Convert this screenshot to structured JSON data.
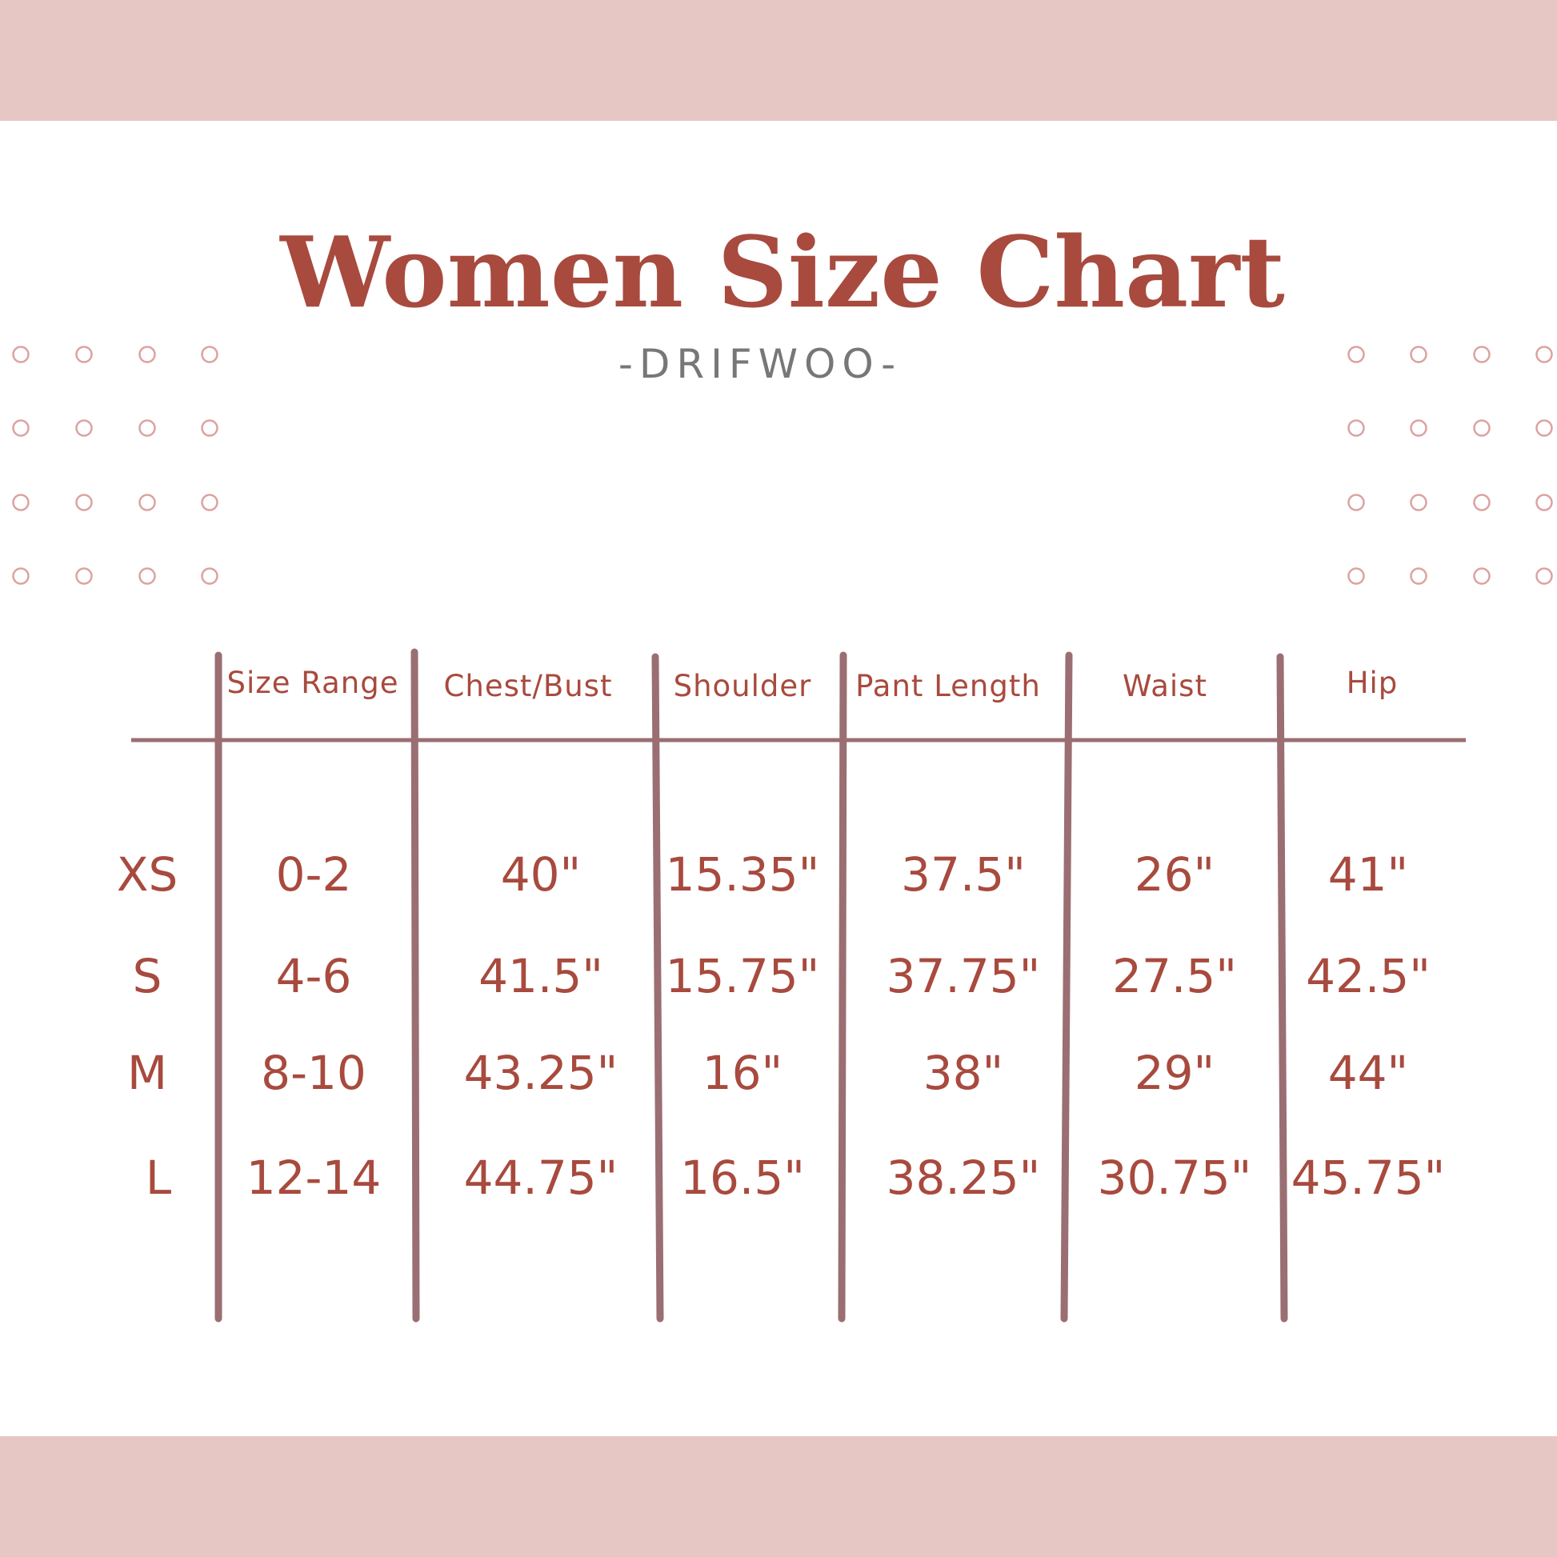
{
  "title": "Women Size Chart",
  "subtitle": "-DRIFWOO-",
  "colors": {
    "band": "#e6c7c4",
    "accent": "#a84a3e",
    "lines": "#9a6e72",
    "dots": "#dba3a1"
  },
  "table": {
    "headers": [
      "Size Range",
      "Chest/Bust",
      "Shoulder",
      "Pant Length",
      "Waist",
      "Hip"
    ],
    "rows": [
      {
        "size": "XS",
        "values": [
          "0-2",
          "40\"",
          "15.35\"",
          "37.5\"",
          "26\"",
          "41\""
        ]
      },
      {
        "size": "S",
        "values": [
          "4-6",
          "41.5\"",
          "15.75\"",
          "37.75\"",
          "27.5\"",
          "42.5\""
        ]
      },
      {
        "size": "M",
        "values": [
          "8-10",
          "43.25\"",
          "16\"",
          "38\"",
          "29\"",
          "44\""
        ]
      },
      {
        "size": "L",
        "values": [
          "12-14",
          "44.75\"",
          "16.5\"",
          "38.25\"",
          "30.75\"",
          "45.75\""
        ]
      }
    ]
  }
}
